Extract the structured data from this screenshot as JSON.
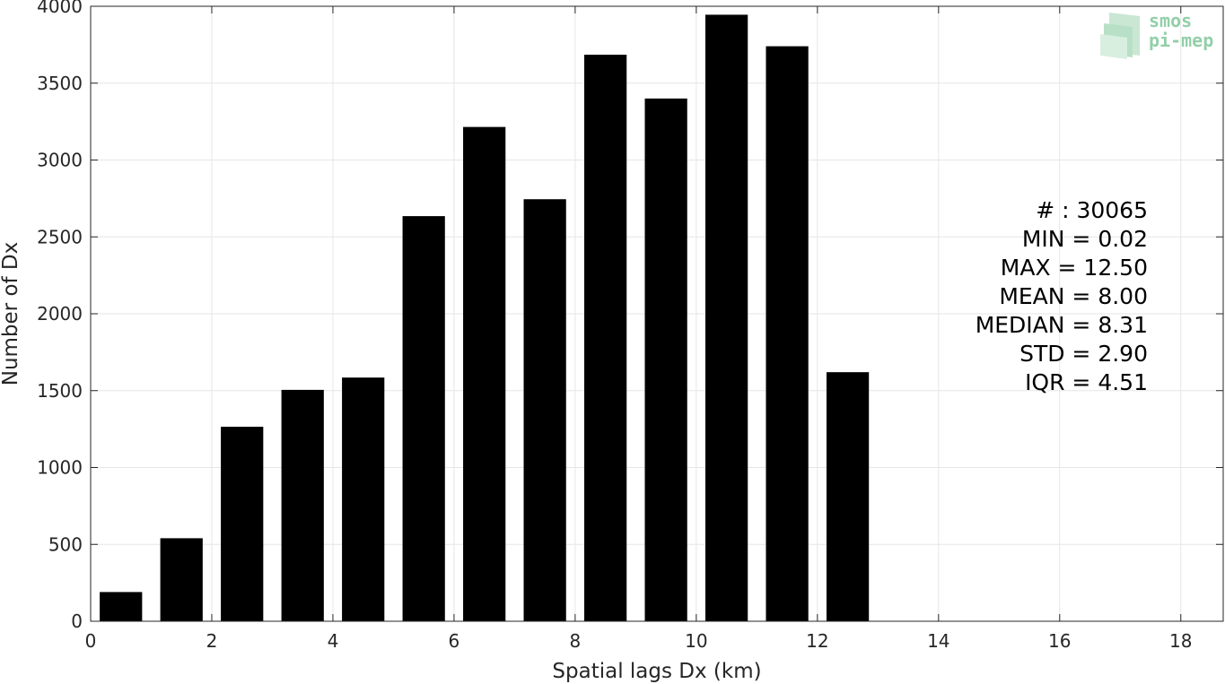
{
  "logo": {
    "line1": "smos",
    "line2": "pi-mep",
    "color": "#7fc79a"
  },
  "stats": [
    "# : 30065",
    "MIN = 0.02",
    "MAX =  12.50",
    "MEAN = 8.00",
    "MEDIAN = 8.31",
    "STD = 2.90",
    "IQR = 4.51"
  ],
  "chart_data": {
    "type": "bar",
    "xlabel": "Spatial lags Dx (km)",
    "ylabel": "Number of Dx",
    "xlim": [
      0,
      18.7
    ],
    "ylim": [
      0,
      4000
    ],
    "xticks": [
      0,
      2,
      4,
      6,
      8,
      10,
      12,
      14,
      16,
      18
    ],
    "yticks": [
      0,
      500,
      1000,
      1500,
      2000,
      2500,
      3000,
      3500,
      4000
    ],
    "grid": true,
    "bar_color": "#000000",
    "bin_width": 1,
    "bar_width_fraction": 0.7,
    "x": [
      0.5,
      1.5,
      2.5,
      3.5,
      4.5,
      5.5,
      6.5,
      7.5,
      8.5,
      9.5,
      10.5,
      11.5,
      12.5
    ],
    "values": [
      190,
      540,
      1265,
      1505,
      1585,
      2635,
      3215,
      2745,
      3685,
      3400,
      3945,
      3740,
      1620
    ]
  }
}
